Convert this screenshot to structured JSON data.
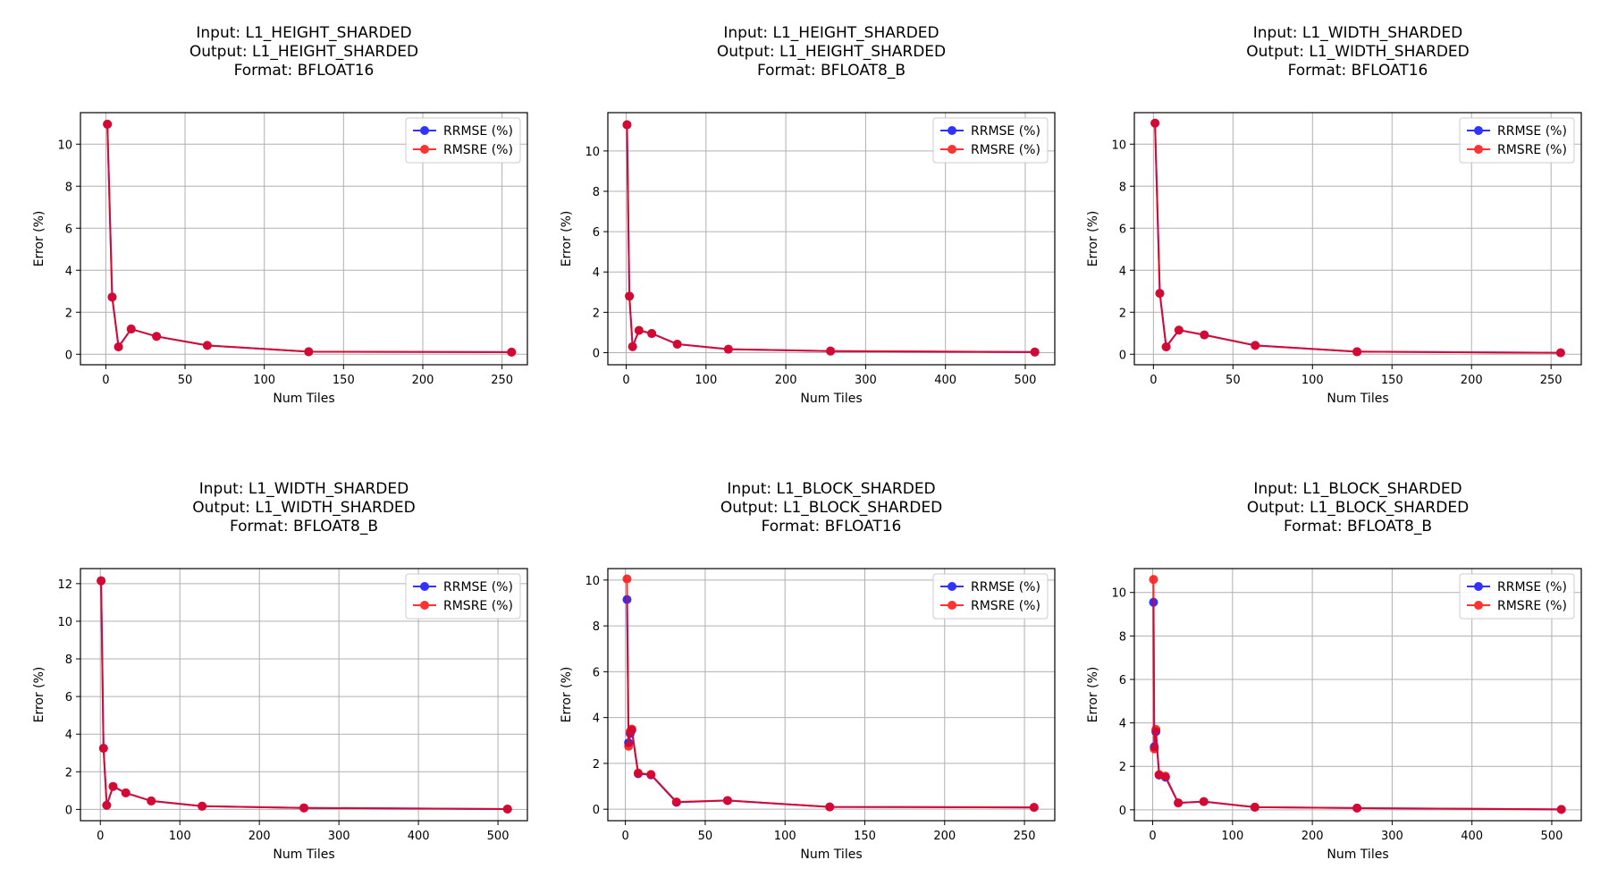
{
  "chart_data": [
    {
      "type": "line",
      "title": [
        "Input: L1_HEIGHT_SHARDED",
        "Output: L1_HEIGHT_SHARDED",
        "Format: BFLOAT16"
      ],
      "xlabel": "Num Tiles",
      "ylabel": "Error (%)",
      "xlim": [
        -16,
        266
      ],
      "ylim": [
        -0.5,
        11.5
      ],
      "xticks": [
        0,
        50,
        100,
        150,
        200,
        250
      ],
      "yticks": [
        0,
        2,
        4,
        6,
        8,
        10
      ],
      "grid": true,
      "legend": "upper-right",
      "x": [
        1,
        4,
        8,
        16,
        32,
        64,
        128,
        256
      ],
      "series": [
        {
          "name": "RRMSE (%)",
          "color": "#0000ff",
          "values": [
            10.95,
            2.72,
            0.35,
            1.2,
            0.85,
            0.42,
            0.12,
            0.1
          ]
        },
        {
          "name": "RMSRE (%)",
          "color": "#ff0000",
          "values": [
            10.95,
            2.72,
            0.35,
            1.2,
            0.85,
            0.42,
            0.12,
            0.1
          ]
        }
      ]
    },
    {
      "type": "line",
      "title": [
        "Input: L1_HEIGHT_SHARDED",
        "Output: L1_HEIGHT_SHARDED",
        "Format: BFLOAT8_B"
      ],
      "xlabel": "Num Tiles",
      "ylabel": "Error (%)",
      "xlim": [
        -23,
        537
      ],
      "ylim": [
        -0.6,
        11.9
      ],
      "xticks": [
        0,
        100,
        200,
        300,
        400,
        500
      ],
      "yticks": [
        0,
        2,
        4,
        6,
        8,
        10
      ],
      "grid": true,
      "legend": "upper-right",
      "x": [
        1,
        4,
        8,
        16,
        32,
        64,
        128,
        256,
        512
      ],
      "series": [
        {
          "name": "RRMSE (%)",
          "color": "#0000ff",
          "values": [
            11.3,
            2.8,
            0.3,
            1.1,
            0.95,
            0.42,
            0.17,
            0.08,
            0.03
          ]
        },
        {
          "name": "RMSRE (%)",
          "color": "#ff0000",
          "values": [
            11.3,
            2.8,
            0.3,
            1.1,
            0.95,
            0.42,
            0.17,
            0.08,
            0.03
          ]
        }
      ]
    },
    {
      "type": "line",
      "title": [
        "Input: L1_WIDTH_SHARDED",
        "Output: L1_WIDTH_SHARDED",
        "Format: BFLOAT16"
      ],
      "xlabel": "Num Tiles",
      "ylabel": "Error (%)",
      "xlim": [
        -12,
        269
      ],
      "ylim": [
        -0.5,
        11.5
      ],
      "xticks": [
        0,
        50,
        100,
        150,
        200,
        250
      ],
      "yticks": [
        0,
        2,
        4,
        6,
        8,
        10
      ],
      "grid": true,
      "legend": "upper-right",
      "x": [
        1,
        4,
        8,
        16,
        32,
        64,
        128,
        256
      ],
      "series": [
        {
          "name": "RRMSE (%)",
          "color": "#0000ff",
          "values": [
            11.0,
            2.9,
            0.35,
            1.15,
            0.92,
            0.42,
            0.12,
            0.07
          ]
        },
        {
          "name": "RMSRE (%)",
          "color": "#ff0000",
          "values": [
            11.0,
            2.9,
            0.35,
            1.15,
            0.92,
            0.42,
            0.12,
            0.07
          ]
        }
      ]
    },
    {
      "type": "line",
      "title": [
        "Input: L1_WIDTH_SHARDED",
        "Output: L1_WIDTH_SHARDED",
        "Format: BFLOAT8_B"
      ],
      "xlabel": "Num Tiles",
      "ylabel": "Error (%)",
      "xlim": [
        -25,
        537
      ],
      "ylim": [
        -0.6,
        12.8
      ],
      "xticks": [
        0,
        100,
        200,
        300,
        400,
        500
      ],
      "yticks": [
        0,
        2,
        4,
        6,
        8,
        10,
        12
      ],
      "grid": true,
      "legend": "upper-right",
      "x": [
        1,
        4,
        8,
        16,
        32,
        64,
        128,
        256,
        512
      ],
      "series": [
        {
          "name": "RRMSE (%)",
          "color": "#0000ff",
          "values": [
            12.15,
            3.25,
            0.22,
            1.22,
            0.88,
            0.45,
            0.17,
            0.08,
            0.02
          ]
        },
        {
          "name": "RMSRE (%)",
          "color": "#ff0000",
          "values": [
            12.15,
            3.25,
            0.22,
            1.22,
            0.88,
            0.45,
            0.17,
            0.08,
            0.02
          ]
        }
      ]
    },
    {
      "type": "line",
      "title": [
        "Input: L1_BLOCK_SHARDED",
        "Output: L1_BLOCK_SHARDED",
        "Format: BFLOAT16"
      ],
      "xlabel": "Num Tiles",
      "ylabel": "Error (%)",
      "xlim": [
        -11,
        269
      ],
      "ylim": [
        -0.5,
        10.5
      ],
      "xticks": [
        0,
        50,
        100,
        150,
        200,
        250
      ],
      "yticks": [
        0,
        2,
        4,
        6,
        8,
        10
      ],
      "grid": true,
      "legend": "upper-right",
      "x": [
        1,
        2,
        3,
        4,
        8,
        16,
        32,
        64,
        128,
        256
      ],
      "series": [
        {
          "name": "RRMSE (%)",
          "color": "#0000ff",
          "values": [
            9.15,
            2.9,
            3.3,
            3.45,
            1.55,
            1.5,
            0.3,
            0.38,
            0.1,
            0.08
          ]
        },
        {
          "name": "RMSRE (%)",
          "color": "#ff0000",
          "values": [
            10.05,
            2.75,
            3.4,
            3.5,
            1.58,
            1.52,
            0.32,
            0.38,
            0.1,
            0.08
          ]
        }
      ]
    },
    {
      "type": "line",
      "title": [
        "Input: L1_BLOCK_SHARDED",
        "Output: L1_BLOCK_SHARDED",
        "Format: BFLOAT8_B"
      ],
      "xlabel": "Num Tiles",
      "ylabel": "Error (%)",
      "xlim": [
        -23,
        537
      ],
      "ylim": [
        -0.5,
        11.1
      ],
      "xticks": [
        0,
        100,
        200,
        300,
        400,
        500
      ],
      "yticks": [
        0,
        2,
        4,
        6,
        8,
        10
      ],
      "grid": true,
      "legend": "upper-right",
      "x": [
        1,
        2,
        4,
        8,
        16,
        32,
        64,
        128,
        256,
        512
      ],
      "series": [
        {
          "name": "RRMSE (%)",
          "color": "#0000ff",
          "values": [
            9.55,
            2.9,
            3.6,
            1.6,
            1.5,
            0.32,
            0.38,
            0.12,
            0.08,
            0.02
          ]
        },
        {
          "name": "RMSRE (%)",
          "color": "#ff0000",
          "values": [
            10.6,
            2.8,
            3.7,
            1.62,
            1.55,
            0.32,
            0.38,
            0.12,
            0.08,
            0.02
          ]
        }
      ]
    }
  ]
}
